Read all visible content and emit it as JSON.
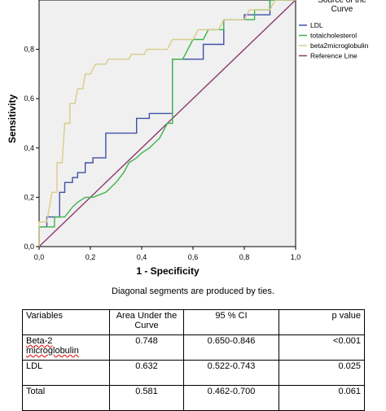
{
  "chart_data": {
    "type": "line",
    "xlabel": "1 - Specificity",
    "ylabel": "Sensitivity",
    "xlim": [
      0,
      1
    ],
    "ylim": [
      0,
      1
    ],
    "x_ticks": [
      "0,0",
      "0,2",
      "0,4",
      "0,6",
      "0,8",
      "1,0"
    ],
    "y_ticks": [
      "0,0",
      "0,2",
      "0,4",
      "0,6",
      "0,8"
    ],
    "grid": false,
    "plot_background": "#f0f0f0",
    "legend": {
      "title": "Source of the Curve",
      "placement": "right"
    },
    "series": [
      {
        "name": "LDL",
        "color": "#3f51a8",
        "points": [
          [
            0,
            0
          ],
          [
            0,
            0.08
          ],
          [
            0.03,
            0.08
          ],
          [
            0.03,
            0.12
          ],
          [
            0.08,
            0.12
          ],
          [
            0.08,
            0.22
          ],
          [
            0.1,
            0.22
          ],
          [
            0.1,
            0.26
          ],
          [
            0.13,
            0.26
          ],
          [
            0.13,
            0.28
          ],
          [
            0.15,
            0.28
          ],
          [
            0.15,
            0.3
          ],
          [
            0.18,
            0.3
          ],
          [
            0.18,
            0.34
          ],
          [
            0.21,
            0.34
          ],
          [
            0.21,
            0.36
          ],
          [
            0.26,
            0.36
          ],
          [
            0.26,
            0.46
          ],
          [
            0.38,
            0.46
          ],
          [
            0.38,
            0.52
          ],
          [
            0.43,
            0.52
          ],
          [
            0.43,
            0.54
          ],
          [
            0.52,
            0.54
          ],
          [
            0.52,
            0.76
          ],
          [
            0.64,
            0.76
          ],
          [
            0.64,
            0.82
          ],
          [
            0.72,
            0.82
          ],
          [
            0.72,
            0.92
          ],
          [
            0.8,
            0.92
          ],
          [
            0.8,
            0.94
          ],
          [
            0.9,
            0.94
          ],
          [
            0.9,
            1.0
          ],
          [
            1.0,
            1.0
          ]
        ]
      },
      {
        "name": "totalcholesterol",
        "color": "#3cb44b",
        "points": [
          [
            0,
            0
          ],
          [
            0,
            0.08
          ],
          [
            0.06,
            0.08
          ],
          [
            0.06,
            0.12
          ],
          [
            0.1,
            0.12
          ],
          [
            0.13,
            0.16
          ],
          [
            0.15,
            0.18
          ],
          [
            0.18,
            0.2
          ],
          [
            0.21,
            0.2
          ],
          [
            0.26,
            0.22
          ],
          [
            0.3,
            0.26
          ],
          [
            0.33,
            0.3
          ],
          [
            0.35,
            0.34
          ],
          [
            0.38,
            0.36
          ],
          [
            0.4,
            0.38
          ],
          [
            0.43,
            0.4
          ],
          [
            0.47,
            0.44
          ],
          [
            0.5,
            0.5
          ],
          [
            0.52,
            0.5
          ],
          [
            0.52,
            0.76
          ],
          [
            0.56,
            0.76
          ],
          [
            0.58,
            0.8
          ],
          [
            0.6,
            0.84
          ],
          [
            0.64,
            0.84
          ],
          [
            0.66,
            0.88
          ],
          [
            0.72,
            0.88
          ],
          [
            0.72,
            0.92
          ],
          [
            0.84,
            0.92
          ],
          [
            0.84,
            0.96
          ],
          [
            0.9,
            0.96
          ],
          [
            0.9,
            1.0
          ],
          [
            1.0,
            1.0
          ]
        ]
      },
      {
        "name": "beta2microglobulin",
        "color": "#d8cc8a",
        "points": [
          [
            0,
            0
          ],
          [
            0,
            0.1
          ],
          [
            0.03,
            0.1
          ],
          [
            0.05,
            0.22
          ],
          [
            0.07,
            0.22
          ],
          [
            0.07,
            0.34
          ],
          [
            0.09,
            0.34
          ],
          [
            0.1,
            0.5
          ],
          [
            0.12,
            0.5
          ],
          [
            0.12,
            0.58
          ],
          [
            0.14,
            0.58
          ],
          [
            0.15,
            0.64
          ],
          [
            0.17,
            0.64
          ],
          [
            0.18,
            0.7
          ],
          [
            0.2,
            0.7
          ],
          [
            0.22,
            0.74
          ],
          [
            0.26,
            0.74
          ],
          [
            0.27,
            0.76
          ],
          [
            0.35,
            0.76
          ],
          [
            0.36,
            0.78
          ],
          [
            0.41,
            0.78
          ],
          [
            0.42,
            0.8
          ],
          [
            0.5,
            0.8
          ],
          [
            0.52,
            0.84
          ],
          [
            0.6,
            0.84
          ],
          [
            0.62,
            0.88
          ],
          [
            0.7,
            0.88
          ],
          [
            0.72,
            0.92
          ],
          [
            0.8,
            0.92
          ],
          [
            0.82,
            0.96
          ],
          [
            0.9,
            0.96
          ],
          [
            0.92,
            1.0
          ],
          [
            1.0,
            1.0
          ]
        ]
      },
      {
        "name": "Reference Line",
        "color": "#8e3a6e",
        "points": [
          [
            0,
            0
          ],
          [
            1,
            1
          ]
        ]
      }
    ]
  },
  "footnote": "Diagonal segments are produced by ties.",
  "table": {
    "headers": [
      "Variables",
      "Area Under the Curve",
      "95 % CI",
      "p value"
    ],
    "rows": [
      [
        "Beta-2 microglobulin",
        "0.748",
        "0.650-0.846",
        "<0.001"
      ],
      [
        "LDL",
        "0.632",
        "0.522-0.743",
        "0.025"
      ],
      [
        "Total",
        "0.581",
        "0.462-0.700",
        "0.061"
      ]
    ]
  }
}
